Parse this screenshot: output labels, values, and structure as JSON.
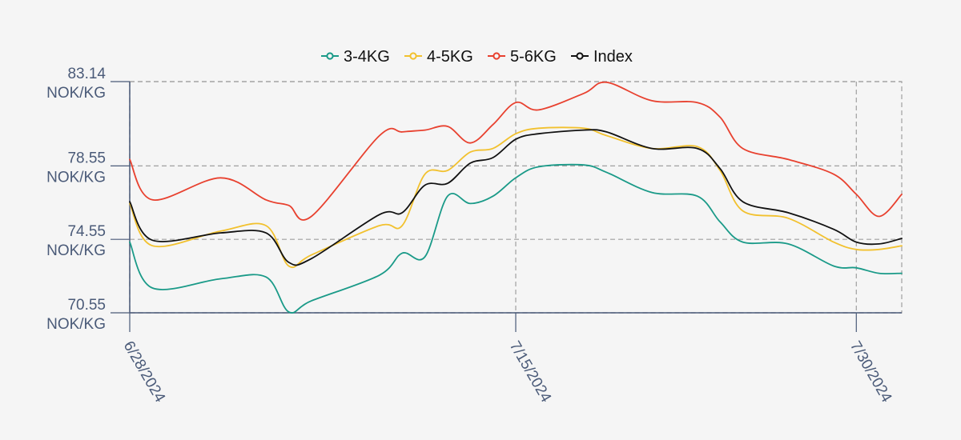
{
  "chart_data": {
    "type": "line",
    "title": "",
    "xlabel": "",
    "ylabel": "",
    "x_range": [
      "2024-06-28",
      "2024-08-01"
    ],
    "ylim": [
      70.55,
      83.14
    ],
    "y_ticks": [
      {
        "value": 83.14,
        "line1": "83.14",
        "line2": "NOK/KG"
      },
      {
        "value": 78.55,
        "line1": "78.55",
        "line2": "NOK/KG"
      },
      {
        "value": 74.55,
        "line1": "74.55",
        "line2": "NOK/KG"
      },
      {
        "value": 70.55,
        "line1": "70.55",
        "line2": "NOK/KG"
      }
    ],
    "x_ticks": [
      {
        "date": "2024-06-28",
        "label": "6/28/2024"
      },
      {
        "date": "2024-07-15",
        "label": "7/15/2024"
      },
      {
        "date": "2024-07-30",
        "label": "7/30/2024"
      }
    ],
    "grid": true,
    "legend_position": "top",
    "x": [
      "2024-06-28",
      "2024-06-29",
      "2024-07-02",
      "2024-07-04",
      "2024-07-05",
      "2024-07-06",
      "2024-07-09",
      "2024-07-10",
      "2024-07-11",
      "2024-07-12",
      "2024-07-13",
      "2024-07-14",
      "2024-07-15",
      "2024-07-16",
      "2024-07-18",
      "2024-07-19",
      "2024-07-21",
      "2024-07-23",
      "2024-07-24",
      "2024-07-25",
      "2024-07-27",
      "2024-07-29",
      "2024-07-30",
      "2024-07-31",
      "2024-08-01"
    ],
    "series": [
      {
        "name": "3-4KG",
        "color": "#1a9a88",
        "values": [
          74.4,
          71.9,
          72.4,
          72.5,
          70.6,
          71.2,
          72.6,
          73.8,
          73.6,
          76.9,
          76.5,
          76.9,
          77.9,
          78.5,
          78.6,
          78.2,
          77.1,
          76.9,
          75.5,
          74.4,
          74.3,
          73.1,
          73.0,
          72.7,
          72.7
        ]
      },
      {
        "name": "4-5KG",
        "color": "#f2c12e",
        "values": [
          76.5,
          74.2,
          75.0,
          75.3,
          73.1,
          73.7,
          75.3,
          75.3,
          78.1,
          78.3,
          79.3,
          79.5,
          80.3,
          80.6,
          80.6,
          80.2,
          79.5,
          79.6,
          78.3,
          76.1,
          75.7,
          74.4,
          74.0,
          74.0,
          74.2
        ]
      },
      {
        "name": "5-6KG",
        "color": "#e8412f",
        "values": [
          78.9,
          76.7,
          77.9,
          76.7,
          76.4,
          75.8,
          80.2,
          80.4,
          80.5,
          80.7,
          79.8,
          80.8,
          82.0,
          81.6,
          82.5,
          83.1,
          82.1,
          82.0,
          81.2,
          79.5,
          78.9,
          78.1,
          77.0,
          75.8,
          77.0
        ]
      },
      {
        "name": "Index",
        "color": "#111111",
        "values": [
          76.6,
          74.5,
          74.9,
          74.9,
          73.3,
          73.5,
          75.9,
          76.0,
          77.5,
          77.6,
          78.7,
          79.0,
          80.0,
          80.3,
          80.5,
          80.4,
          79.5,
          79.5,
          78.4,
          76.6,
          76.0,
          75.1,
          74.4,
          74.3,
          74.6
        ]
      }
    ]
  }
}
